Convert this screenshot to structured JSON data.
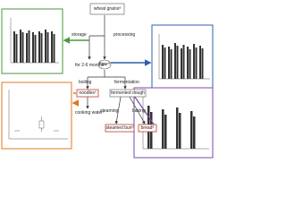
{
  "nodes": [
    {
      "label": "wheat grains",
      "sup": "a"
    },
    {
      "label": "flour",
      "sup": "a"
    },
    {
      "label": "noodles",
      "sup": "c"
    },
    {
      "label": "fermented dough"
    },
    {
      "label": "steamed bun",
      "sup": "d"
    },
    {
      "label": "bread",
      "sup": "d"
    }
  ],
  "edges": [
    {
      "label": "storage"
    },
    {
      "label": "processing"
    },
    {
      "label": "for 2-6 months",
      "sup": "b"
    },
    {
      "label": "boiling"
    },
    {
      "label": "fermentation"
    },
    {
      "label": "cooking water",
      "sup": "c"
    },
    {
      "label": "steaming"
    },
    {
      "label": "baking"
    }
  ]
}
